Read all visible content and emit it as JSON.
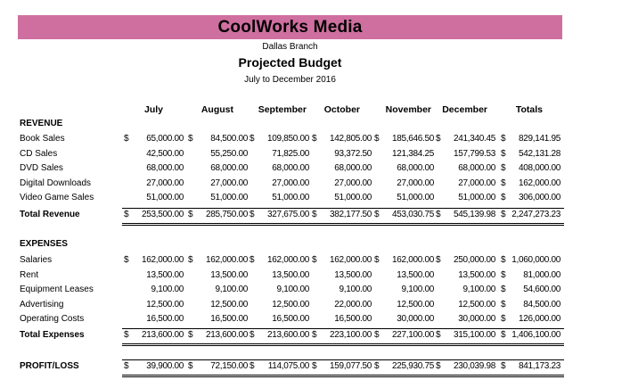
{
  "header": {
    "company": "CoolWorks Media",
    "branch": "Dallas Branch",
    "title": "Projected Budget",
    "period": "July to December 2016",
    "band_color": "#cf6fa0"
  },
  "columns": [
    "July",
    "August",
    "September",
    "October",
    "November",
    "December",
    "Totals"
  ],
  "revenue": {
    "section_label": "REVENUE",
    "rows": [
      {
        "label": "Book Sales",
        "values": [
          "65,000.00",
          "84,500.00",
          "109,850.00",
          "142,805.00",
          "185,646.50",
          "241,340.45",
          "829,141.95"
        ],
        "currency": [
          true,
          true,
          true,
          true,
          true,
          true,
          true
        ]
      },
      {
        "label": "CD Sales",
        "values": [
          "42,500.00",
          "55,250.00",
          "71,825.00",
          "93,372.50",
          "121,384.25",
          "157,799.53",
          "542,131.28"
        ],
        "currency": [
          false,
          false,
          false,
          false,
          false,
          false,
          true
        ]
      },
      {
        "label": "DVD Sales",
        "values": [
          "68,000.00",
          "68,000.00",
          "68,000.00",
          "68,000.00",
          "68,000.00",
          "68,000.00",
          "408,000.00"
        ],
        "currency": [
          false,
          false,
          false,
          false,
          false,
          false,
          true
        ]
      },
      {
        "label": "Digital Downloads",
        "values": [
          "27,000.00",
          "27,000.00",
          "27,000.00",
          "27,000.00",
          "27,000.00",
          "27,000.00",
          "162,000.00"
        ],
        "currency": [
          false,
          false,
          false,
          false,
          false,
          false,
          true
        ]
      },
      {
        "label": "Video Game Sales",
        "values": [
          "51,000.00",
          "51,000.00",
          "51,000.00",
          "51,000.00",
          "51,000.00",
          "51,000.00",
          "306,000.00"
        ],
        "currency": [
          false,
          false,
          false,
          false,
          false,
          false,
          true
        ]
      }
    ],
    "total": {
      "label": "Total Revenue",
      "values": [
        "253,500.00",
        "285,750.00",
        "327,675.00",
        "382,177.50",
        "453,030.75",
        "545,139.98",
        "2,247,273.23"
      ]
    }
  },
  "expenses": {
    "section_label": "EXPENSES",
    "rows": [
      {
        "label": "Salaries",
        "values": [
          "162,000.00",
          "162,000.00",
          "162,000.00",
          "162,000.00",
          "162,000.00",
          "250,000.00",
          "1,060,000.00"
        ],
        "currency": [
          true,
          true,
          true,
          true,
          true,
          true,
          true
        ]
      },
      {
        "label": "Rent",
        "values": [
          "13,500.00",
          "13,500.00",
          "13,500.00",
          "13,500.00",
          "13,500.00",
          "13,500.00",
          "81,000.00"
        ],
        "currency": [
          false,
          false,
          false,
          false,
          false,
          false,
          true
        ]
      },
      {
        "label": "Equipment Leases",
        "values": [
          "9,100.00",
          "9,100.00",
          "9,100.00",
          "9,100.00",
          "9,100.00",
          "9,100.00",
          "54,600.00"
        ],
        "currency": [
          false,
          false,
          false,
          false,
          false,
          false,
          true
        ]
      },
      {
        "label": "Advertising",
        "values": [
          "12,500.00",
          "12,500.00",
          "12,500.00",
          "22,000.00",
          "12,500.00",
          "12,500.00",
          "84,500.00"
        ],
        "currency": [
          false,
          false,
          false,
          false,
          false,
          false,
          true
        ]
      },
      {
        "label": "Operating Costs",
        "values": [
          "16,500.00",
          "16,500.00",
          "16,500.00",
          "16,500.00",
          "30,000.00",
          "30,000.00",
          "126,000.00"
        ],
        "currency": [
          false,
          false,
          false,
          false,
          false,
          false,
          true
        ]
      }
    ],
    "total": {
      "label": "Total Expenses",
      "values": [
        "213,600.00",
        "213,600.00",
        "213,600.00",
        "223,100.00",
        "227,100.00",
        "315,100.00",
        "1,406,100.00"
      ]
    }
  },
  "profit_loss": {
    "label": "PROFIT/LOSS",
    "values": [
      "39,900.00",
      "72,150.00",
      "114,075.00",
      "159,077.50",
      "225,930.75",
      "230,039.98",
      "841,173.23"
    ]
  },
  "currency_symbol": "$"
}
